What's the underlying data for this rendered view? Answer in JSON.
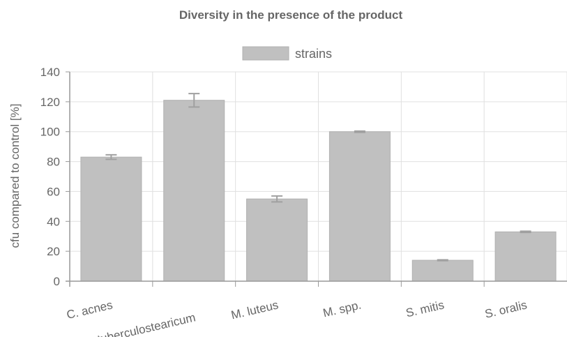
{
  "chart_data": {
    "type": "bar",
    "title": "Diversity in the presence of the product",
    "ylabel": "cfu compared to control [%]",
    "xlabel": "",
    "categories": [
      "C. acnes",
      "C. tuberculostearicum",
      "M. luteus",
      "M. spp.",
      "S. mitis",
      "S. oralis"
    ],
    "series": [
      {
        "name": "strains",
        "values": [
          83,
          121,
          55,
          100,
          14,
          33
        ],
        "errors": [
          1.5,
          4.5,
          2,
          0.4,
          0.3,
          0.4
        ]
      }
    ],
    "ylim": [
      0,
      140
    ],
    "yticks": [
      0,
      20,
      40,
      60,
      80,
      100,
      120,
      140
    ],
    "grid": true,
    "legend": "top-center",
    "colors": {
      "bar": "#c0c0c0",
      "bar_border": "#b0b0b0",
      "error": "#a0a0a0",
      "grid": "#e0e0e0",
      "axis": "#999999",
      "text": "#666666"
    }
  }
}
